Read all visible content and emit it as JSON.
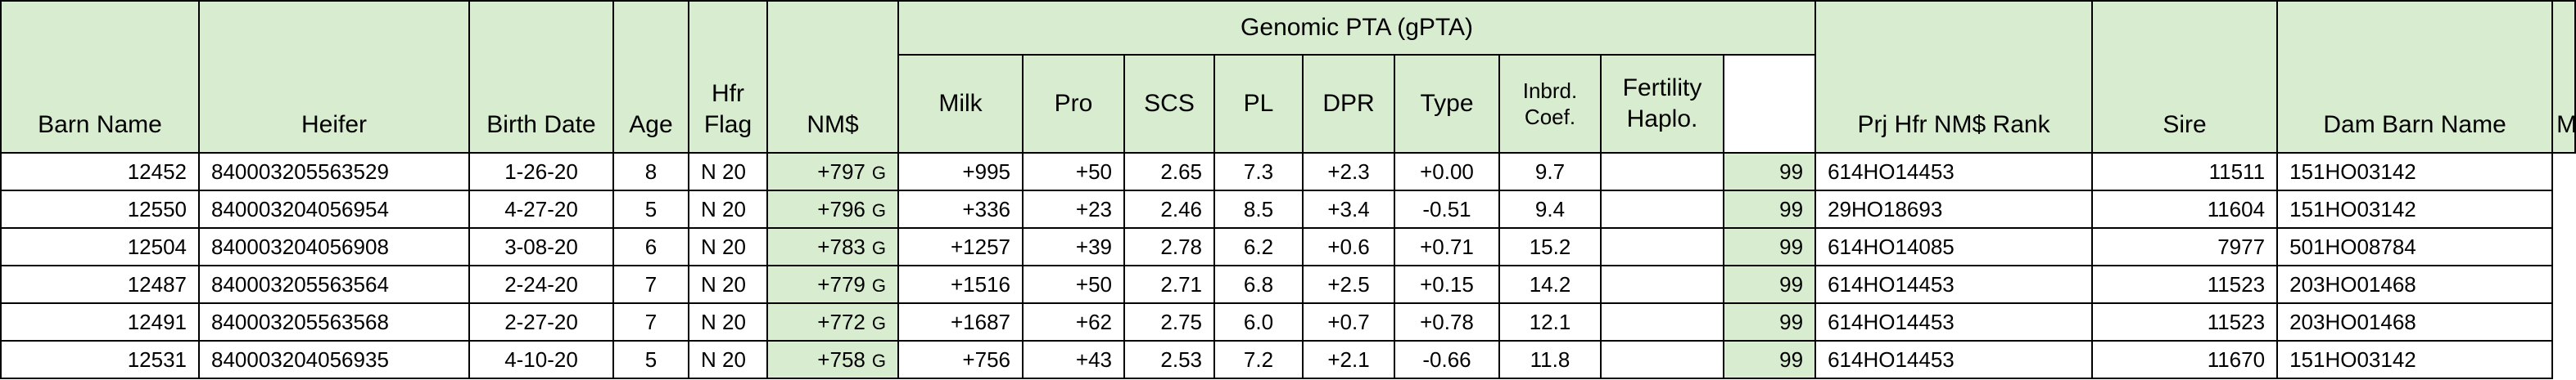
{
  "headers": {
    "barn_name": "Barn Name",
    "heifer": "Heifer",
    "birth_date": "Birth Date",
    "age": "Age",
    "hfr_flag": "Hfr Flag",
    "nm": "NM$",
    "gpta_group": "Genomic PTA (gPTA)",
    "milk": "Milk",
    "pro": "Pro",
    "scs": "SCS",
    "pl": "PL",
    "dpr": "DPR",
    "type": "Type",
    "inbrd": "Inbrd. Coef.",
    "fertility": "Fertility Haplo.",
    "prj_rank": "Prj Hfr NM$ Rank",
    "sire": "Sire",
    "dam_barn": "Dam Barn Name",
    "mgs": "MGS"
  },
  "rows": [
    {
      "barn": "12452",
      "heifer": "840003205563529",
      "birth": "1-26-20",
      "age": "8",
      "flag": "N 20",
      "nm": "+797",
      "grade": "G",
      "milk": "+995",
      "pro": "+50",
      "scs": "2.65",
      "pl": "7.3",
      "dpr": "+2.3",
      "type": "+0.00",
      "inbrd": "9.7",
      "fert": "",
      "rank": "99",
      "sire": "614HO14453",
      "dam": "11511",
      "mgs": "151HO03142"
    },
    {
      "barn": "12550",
      "heifer": "840003204056954",
      "birth": "4-27-20",
      "age": "5",
      "flag": "N 20",
      "nm": "+796",
      "grade": "G",
      "milk": "+336",
      "pro": "+23",
      "scs": "2.46",
      "pl": "8.5",
      "dpr": "+3.4",
      "type": "-0.51",
      "inbrd": "9.4",
      "fert": "",
      "rank": "99",
      "sire": "29HO18693",
      "dam": "11604",
      "mgs": "151HO03142"
    },
    {
      "barn": "12504",
      "heifer": "840003204056908",
      "birth": "3-08-20",
      "age": "6",
      "flag": "N 20",
      "nm": "+783",
      "grade": "G",
      "milk": "+1257",
      "pro": "+39",
      "scs": "2.78",
      "pl": "6.2",
      "dpr": "+0.6",
      "type": "+0.71",
      "inbrd": "15.2",
      "fert": "",
      "rank": "99",
      "sire": "614HO14085",
      "dam": "7977",
      "mgs": "501HO08784"
    },
    {
      "barn": "12487",
      "heifer": "840003205563564",
      "birth": "2-24-20",
      "age": "7",
      "flag": "N 20",
      "nm": "+779",
      "grade": "G",
      "milk": "+1516",
      "pro": "+50",
      "scs": "2.71",
      "pl": "6.8",
      "dpr": "+2.5",
      "type": "+0.15",
      "inbrd": "14.2",
      "fert": "",
      "rank": "99",
      "sire": "614HO14453",
      "dam": "11523",
      "mgs": "203HO01468"
    },
    {
      "barn": "12491",
      "heifer": "840003205563568",
      "birth": "2-27-20",
      "age": "7",
      "flag": "N 20",
      "nm": "+772",
      "grade": "G",
      "milk": "+1687",
      "pro": "+62",
      "scs": "2.75",
      "pl": "6.0",
      "dpr": "+0.7",
      "type": "+0.78",
      "inbrd": "12.1",
      "fert": "",
      "rank": "99",
      "sire": "614HO14453",
      "dam": "11523",
      "mgs": "203HO01468"
    },
    {
      "barn": "12531",
      "heifer": "840003204056935",
      "birth": "4-10-20",
      "age": "5",
      "flag": "N 20",
      "nm": "+758",
      "grade": "G",
      "milk": "+756",
      "pro": "+43",
      "scs": "2.53",
      "pl": "7.2",
      "dpr": "+2.1",
      "type": "-0.66",
      "inbrd": "11.8",
      "fert": "",
      "rank": "99",
      "sire": "614HO14453",
      "dam": "11670",
      "mgs": "151HO03142"
    }
  ]
}
